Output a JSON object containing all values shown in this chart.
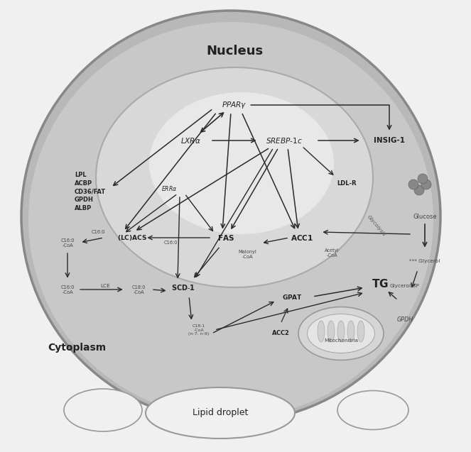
{
  "bg_color": "#f0f0f0",
  "cell_outer_color": "#b8b8b8",
  "cell_inner_color": "#cccccc",
  "nucleus_color": "#d8d8d8",
  "nucleus_inner_color": "#e8e8e8",
  "lipid_bg": "#e8e8e8",
  "mito_color": "#e0e0e0",
  "arrow_color": "#2a2a2a",
  "text_color": "#222222",
  "font_size_main": 7.5,
  "font_size_small": 5.5,
  "font_size_tiny": 4.8,
  "nucleus_title": "Nucleus",
  "cytoplasm_label": "Cytoplasm",
  "lipid_label": "Lipid droplet"
}
